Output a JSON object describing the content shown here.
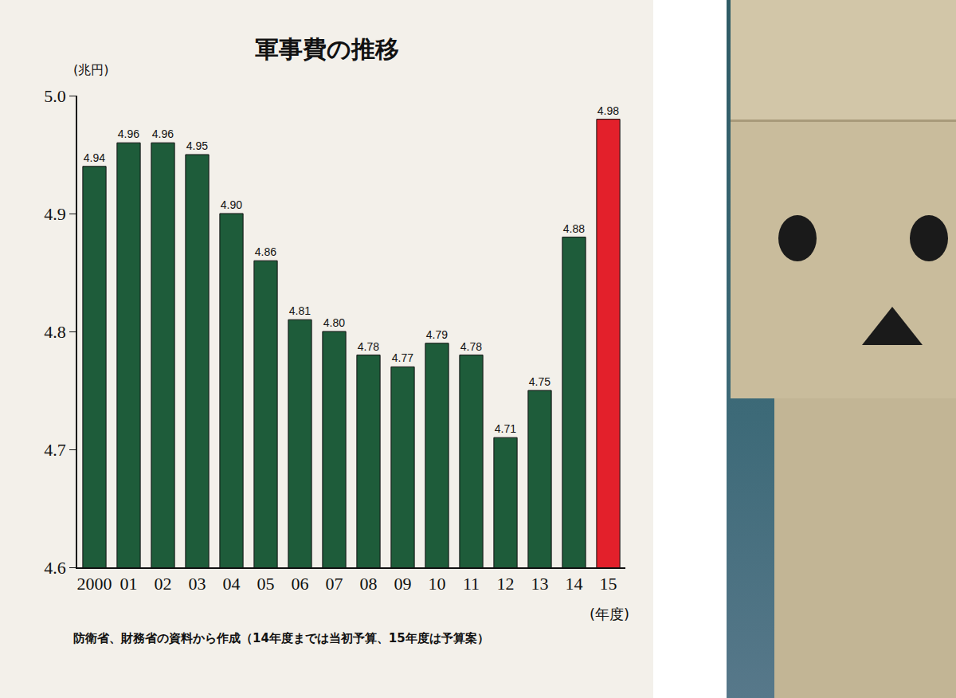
{
  "chart_data": {
    "type": "bar",
    "title": "軍事費の推移",
    "ylabel": "(兆円)",
    "xlabel": "(年度)",
    "source": "防衛省、財務省の資料から作成（14年度までは当初予算、15年度は予算案）",
    "categories": [
      "2000",
      "01",
      "02",
      "03",
      "04",
      "05",
      "06",
      "07",
      "08",
      "09",
      "10",
      "11",
      "12",
      "13",
      "14",
      "15"
    ],
    "values": [
      4.94,
      4.96,
      4.96,
      4.95,
      4.9,
      4.86,
      4.81,
      4.8,
      4.78,
      4.77,
      4.79,
      4.78,
      4.71,
      4.75,
      4.88,
      4.98
    ],
    "value_labels": [
      "4.94",
      "4.96",
      "4.96",
      "4.95",
      "4.90",
      "4.86",
      "4.81",
      "4.80",
      "4.78",
      "4.77",
      "4.79",
      "4.78",
      "4.71",
      "4.75",
      "4.88",
      "4.98"
    ],
    "colors": [
      "#1e5c3a",
      "#1e5c3a",
      "#1e5c3a",
      "#1e5c3a",
      "#1e5c3a",
      "#1e5c3a",
      "#1e5c3a",
      "#1e5c3a",
      "#1e5c3a",
      "#1e5c3a",
      "#1e5c3a",
      "#1e5c3a",
      "#1e5c3a",
      "#1e5c3a",
      "#1e5c3a",
      "#e3202b"
    ],
    "ylim": [
      4.6,
      5.0
    ],
    "yticks": [
      4.6,
      4.7,
      4.8,
      4.9,
      {
        "value": 5,
        "label": "5.0"
      }
    ],
    "grid": false,
    "data_labels": true
  }
}
